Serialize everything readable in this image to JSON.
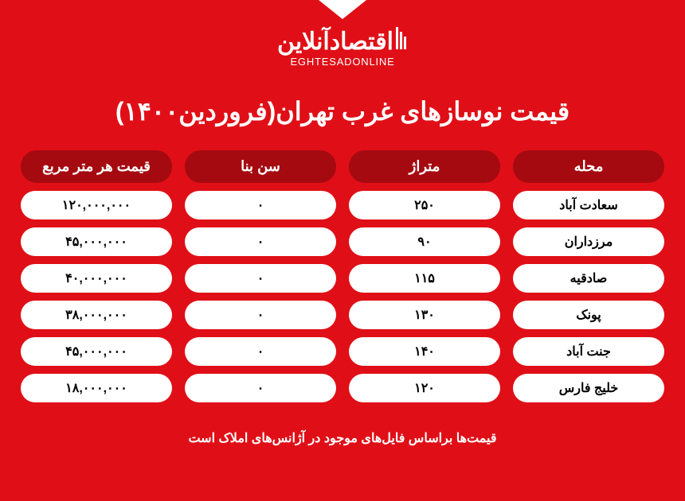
{
  "logo": {
    "main": "اقتصادآنلاین",
    "sub": "EGHTESADONLINE"
  },
  "title": "قیمت نوسازهای غرب تهران(فروردین۱۴۰۰)",
  "headers": [
    "محله",
    "متراژ",
    "سن بنا",
    "قیمت هر متر مربع"
  ],
  "rows": [
    [
      "سعادت آباد",
      "۲۵۰",
      "۰",
      "۱۲۰,۰۰۰,۰۰۰"
    ],
    [
      "مرزداران",
      "۹۰",
      "۰",
      "۴۵,۰۰۰,۰۰۰"
    ],
    [
      "صادقیه",
      "۱۱۵",
      "۰",
      "۴۰,۰۰۰,۰۰۰"
    ],
    [
      "پونک",
      "۱۳۰",
      "۰",
      "۳۸,۰۰۰,۰۰۰"
    ],
    [
      "جنت آباد",
      "۱۴۰",
      "۰",
      "۴۵,۰۰۰,۰۰۰"
    ],
    [
      "خلیج فارس",
      "۱۲۰",
      "۰",
      "۱۸,۰۰۰,۰۰۰"
    ]
  ],
  "footnote": "قیمت‌ها براساس فایل‌های موجود در آژانس‌های املاک است",
  "colors": {
    "background": "#e00f17",
    "header_bg": "#a50a10",
    "cell_bg": "#ffffff",
    "text_light": "#ffffff",
    "text_dark": "#000000"
  },
  "font_sizes": {
    "title": 32,
    "header": 18,
    "data": 16,
    "footnote": 16,
    "logo_main": 30,
    "logo_sub": 13
  }
}
